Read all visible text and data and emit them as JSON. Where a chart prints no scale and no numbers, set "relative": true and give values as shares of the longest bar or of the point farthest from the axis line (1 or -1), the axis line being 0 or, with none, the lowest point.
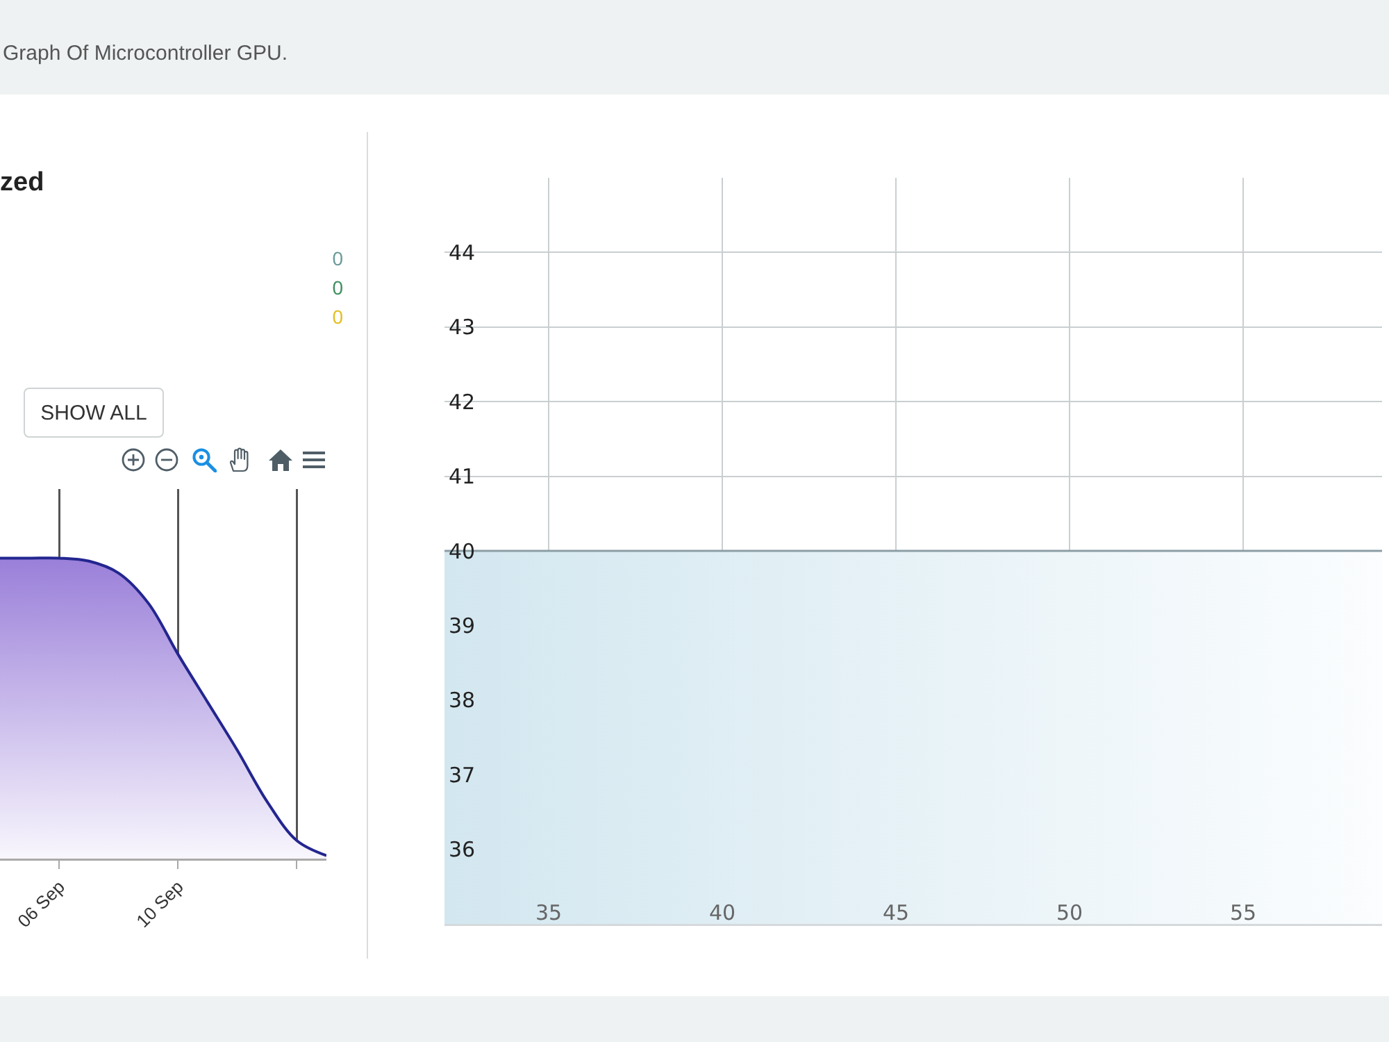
{
  "chart_data": [
    {
      "type": "other",
      "title": "Graph Of Microcontroller GPU."
    },
    {
      "type": "area",
      "title": "zed",
      "relative": true,
      "x": [
        "--09-04",
        "--09-05",
        "--09-06",
        "--09-07",
        "--09-08",
        "--09-09",
        "--09-10",
        "--09-11",
        "--09-12",
        "--09-13",
        "--09-14",
        "--09-15"
      ],
      "values": [
        1,
        1,
        1,
        0.99,
        0.95,
        0.85,
        0.68,
        0.52,
        0.36,
        0.19,
        0.06,
        0.01
      ],
      "color": "#23268f",
      "xlim": [
        "--09-04",
        "--09-15"
      ],
      "xticks": [
        {
          "value": "--09-06",
          "label": "06 Sep"
        },
        {
          "value": "--09-10",
          "label": "10 Sep"
        },
        {
          "value": "--09-14",
          "label": null
        }
      ],
      "grid": "x",
      "annotations": [
        "0",
        "0",
        "0",
        "SHOW ALL"
      ]
    },
    {
      "type": "area",
      "x": [
        32,
        35,
        40,
        45,
        50,
        55,
        59
      ],
      "values": [
        40,
        40,
        40,
        40,
        40,
        40,
        40
      ],
      "color": "#8c9ea5",
      "xlim": [
        32,
        59
      ],
      "ylim": [
        35,
        45
      ],
      "xticks": [
        35,
        40,
        45,
        50,
        55
      ],
      "yticks": [
        36,
        37,
        38,
        39,
        40,
        41,
        42,
        43,
        44
      ],
      "grid": true
    }
  ]
}
